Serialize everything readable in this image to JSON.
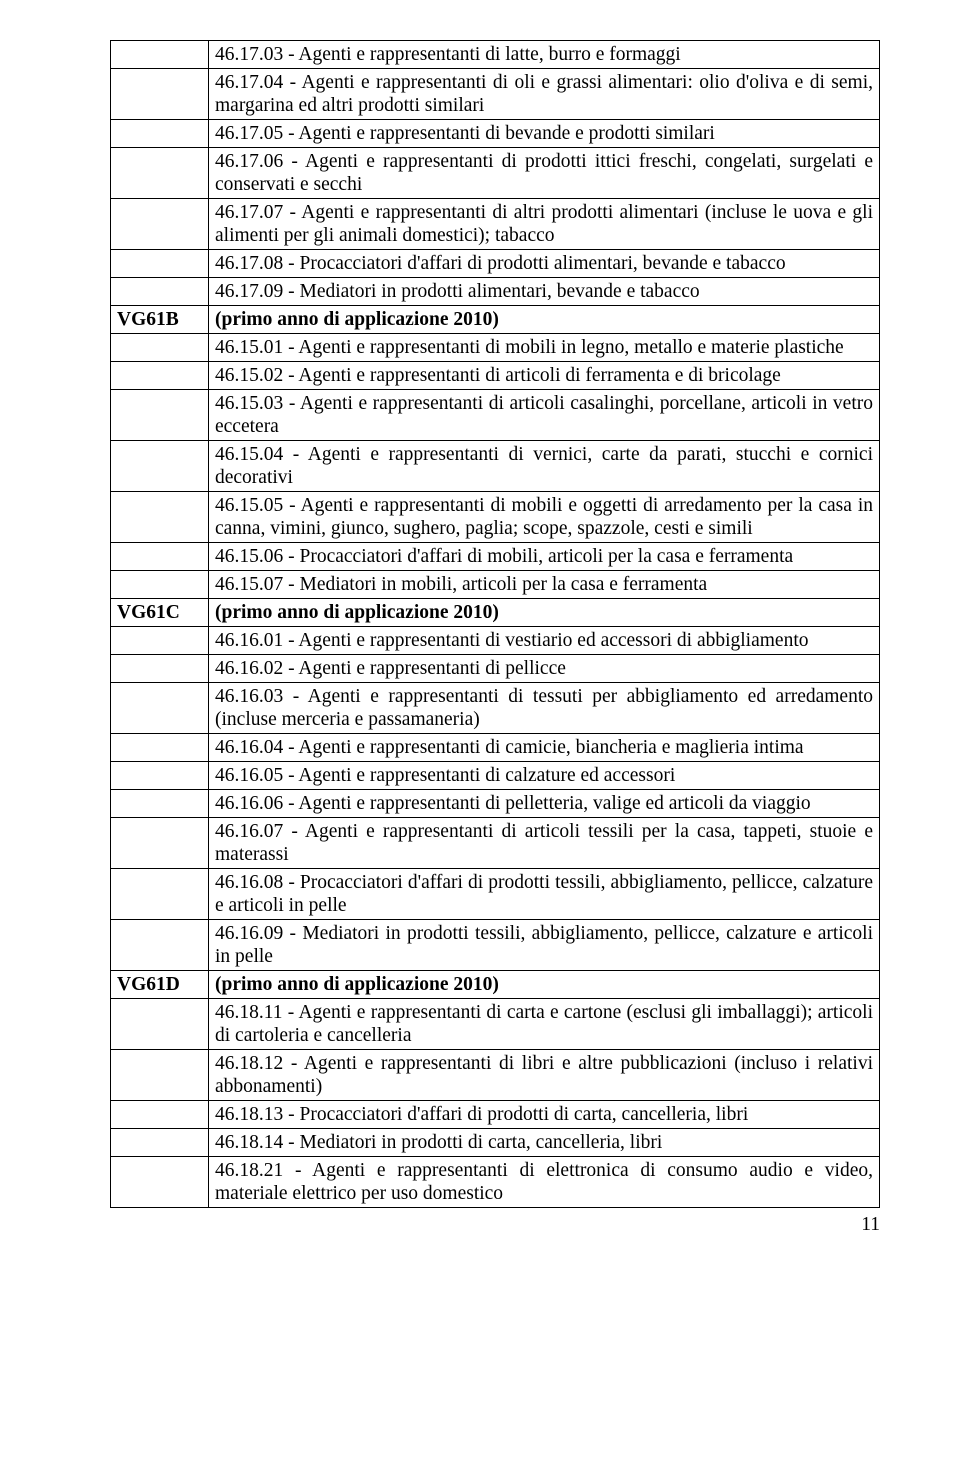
{
  "page_number": "11",
  "rows": [
    {
      "label": "",
      "text": "46.17.03 - Agenti e rappresentanti di latte, burro e formaggi",
      "bold": false,
      "justify": false
    },
    {
      "label": "",
      "text": "46.17.04 - Agenti e rappresentanti di oli e grassi alimentari: olio d'oliva e di semi, margarina ed altri prodotti similari",
      "bold": false,
      "justify": true
    },
    {
      "label": "",
      "text": "46.17.05 - Agenti e rappresentanti di bevande e prodotti similari",
      "bold": false,
      "justify": false
    },
    {
      "label": "",
      "text": "46.17.06 - Agenti e rappresentanti di prodotti ittici freschi, congelati, surgelati e conservati e secchi",
      "bold": false,
      "justify": true
    },
    {
      "label": "",
      "text": "46.17.07 - Agenti e rappresentanti di altri prodotti alimentari (incluse le uova e gli alimenti per gli animali domestici); tabacco",
      "bold": false,
      "justify": true
    },
    {
      "label": "",
      "text": "46.17.08 - Procacciatori d'affari di prodotti alimentari, bevande e tabacco",
      "bold": false,
      "justify": false
    },
    {
      "label": "",
      "text": "46.17.09 - Mediatori in prodotti alimentari, bevande e tabacco",
      "bold": false,
      "justify": false
    },
    {
      "label": "VG61B",
      "text": "(primo anno di applicazione 2010)",
      "bold": true,
      "justify": false
    },
    {
      "label": "",
      "text": "46.15.01 - Agenti e rappresentanti di mobili in legno, metallo e materie plastiche",
      "bold": false,
      "justify": true
    },
    {
      "label": "",
      "text": "46.15.02 - Agenti e rappresentanti di articoli di ferramenta e di bricolage",
      "bold": false,
      "justify": false
    },
    {
      "label": "",
      "text": "46.15.03 - Agenti e rappresentanti di articoli casalinghi, porcellane, articoli in vetro eccetera",
      "bold": false,
      "justify": true
    },
    {
      "label": "",
      "text": "46.15.04 - Agenti e rappresentanti di vernici, carte da parati, stucchi e cornici decorativi",
      "bold": false,
      "justify": true
    },
    {
      "label": "",
      "text": "46.15.05 - Agenti e rappresentanti di mobili e oggetti di arredamento per la casa in canna, vimini, giunco, sughero, paglia; scope, spazzole, cesti e simili",
      "bold": false,
      "justify": true
    },
    {
      "label": "",
      "text": "46.15.06 - Procacciatori d'affari di mobili, articoli per la casa e ferramenta",
      "bold": false,
      "justify": false
    },
    {
      "label": "",
      "text": "46.15.07 - Mediatori in mobili, articoli per la casa e ferramenta",
      "bold": false,
      "justify": false
    },
    {
      "label": "VG61C",
      "text": "(primo anno di applicazione 2010)",
      "bold": true,
      "justify": false
    },
    {
      "label": "",
      "text": "46.16.01 - Agenti e rappresentanti di vestiario ed accessori di abbigliamento",
      "bold": false,
      "justify": false
    },
    {
      "label": "",
      "text": "46.16.02 - Agenti e rappresentanti di pellicce",
      "bold": false,
      "justify": false
    },
    {
      "label": "",
      "text": "46.16.03 - Agenti e rappresentanti di tessuti per abbigliamento ed arredamento (incluse merceria e passamaneria)",
      "bold": false,
      "justify": true
    },
    {
      "label": "",
      "text": "46.16.04 - Agenti e rappresentanti di camicie, biancheria e maglieria intima",
      "bold": false,
      "justify": false
    },
    {
      "label": "",
      "text": "46.16.05 - Agenti e rappresentanti di calzature ed accessori",
      "bold": false,
      "justify": false
    },
    {
      "label": "",
      "text": "46.16.06 - Agenti e rappresentanti di pelletteria, valige ed articoli da viaggio",
      "bold": false,
      "justify": true
    },
    {
      "label": "",
      "text": "46.16.07 - Agenti e rappresentanti di articoli tessili per la casa, tappeti, stuoie e materassi",
      "bold": false,
      "justify": true
    },
    {
      "label": "",
      "text": "46.16.08 - Procacciatori d'affari di prodotti tessili, abbigliamento, pellicce, calzature e articoli in pelle",
      "bold": false,
      "justify": true
    },
    {
      "label": "",
      "text": "46.16.09 - Mediatori in prodotti tessili, abbigliamento, pellicce, calzature e articoli in pelle",
      "bold": false,
      "justify": true
    },
    {
      "label": "VG61D",
      "text": "(primo anno di applicazione 2010)",
      "bold": true,
      "justify": false
    },
    {
      "label": "",
      "text": "46.18.11 - Agenti e rappresentanti di carta e cartone (esclusi gli imballaggi); articoli di cartoleria e cancelleria",
      "bold": false,
      "justify": true
    },
    {
      "label": "",
      "text": "46.18.12 - Agenti e rappresentanti di libri e altre pubblicazioni (incluso i relativi abbonamenti)",
      "bold": false,
      "justify": true
    },
    {
      "label": "",
      "text": "46.18.13 - Procacciatori d'affari di prodotti di carta, cancelleria, libri",
      "bold": false,
      "justify": false
    },
    {
      "label": "",
      "text": "46.18.14 - Mediatori in prodotti di carta, cancelleria, libri",
      "bold": false,
      "justify": false
    },
    {
      "label": "",
      "text": "46.18.21 - Agenti e rappresentanti di elettronica di consumo audio e video, materiale elettrico per uso domestico",
      "bold": false,
      "justify": true
    }
  ]
}
